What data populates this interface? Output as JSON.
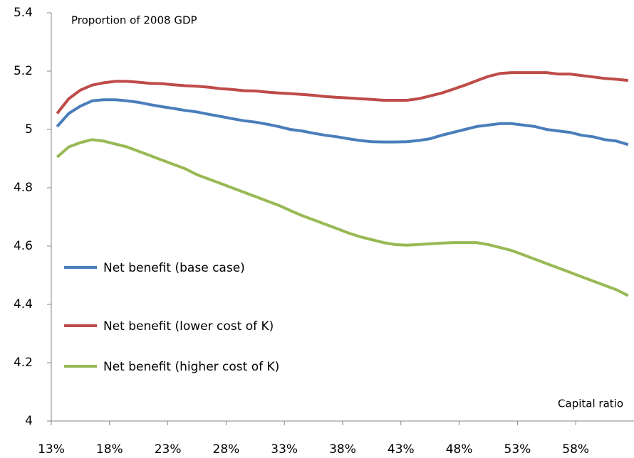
{
  "chart_data": {
    "type": "line",
    "ylabel": "Proportion of 2008 GDP",
    "xlabel": "Capital ratio",
    "x": [
      13.5,
      14.5,
      15.5,
      16.5,
      17.5,
      18.5,
      19.5,
      20.5,
      21.5,
      22.5,
      23.5,
      24.5,
      25.5,
      26.5,
      27.5,
      28.5,
      29.5,
      30.5,
      31.5,
      32.5,
      33.5,
      34.5,
      35.5,
      36.5,
      37.5,
      38.5,
      39.5,
      40.5,
      41.5,
      42.5,
      43.5,
      44.5,
      45.5,
      46.5,
      47.5,
      48.5,
      49.5,
      50.5,
      51.5,
      52.5,
      53.5,
      54.5,
      55.5,
      56.5,
      57.5,
      58.5,
      59.5,
      60.5,
      61.5,
      62.5
    ],
    "series": [
      {
        "name": "Net benefit (base case)",
        "color": "#4a7ebb",
        "values": [
          5.01,
          5.055,
          5.08,
          5.098,
          5.102,
          5.102,
          5.098,
          5.093,
          5.085,
          5.078,
          5.072,
          5.065,
          5.06,
          5.052,
          5.045,
          5.037,
          5.03,
          5.025,
          5.018,
          5.01,
          5.0,
          4.995,
          4.987,
          4.98,
          4.975,
          4.968,
          4.962,
          4.958,
          4.957,
          4.957,
          4.958,
          4.962,
          4.968,
          4.98,
          4.99,
          5.0,
          5.01,
          5.015,
          5.02,
          5.02,
          5.015,
          5.01,
          5.0,
          4.995,
          4.99,
          4.98,
          4.975,
          4.965,
          4.96,
          4.948
        ]
      },
      {
        "name": "Net benefit (lower cost of K)",
        "color": "#be4b48",
        "values": [
          5.055,
          5.105,
          5.135,
          5.152,
          5.16,
          5.165,
          5.165,
          5.162,
          5.158,
          5.157,
          5.153,
          5.15,
          5.148,
          5.145,
          5.14,
          5.137,
          5.133,
          5.132,
          5.128,
          5.125,
          5.123,
          5.12,
          5.117,
          5.113,
          5.11,
          5.108,
          5.105,
          5.103,
          5.1,
          5.1,
          5.1,
          5.105,
          5.115,
          5.125,
          5.138,
          5.152,
          5.167,
          5.182,
          5.192,
          5.195,
          5.195,
          5.195,
          5.195,
          5.19,
          5.19,
          5.185,
          5.18,
          5.175,
          5.172,
          5.168
        ]
      },
      {
        "name": "Net benefit (higher cost of K)",
        "color": "#98b954",
        "values": [
          4.905,
          4.94,
          4.955,
          4.965,
          4.96,
          4.95,
          4.94,
          4.925,
          4.91,
          4.895,
          4.88,
          4.865,
          4.845,
          4.83,
          4.815,
          4.8,
          4.785,
          4.77,
          4.755,
          4.74,
          4.722,
          4.705,
          4.69,
          4.675,
          4.66,
          4.645,
          4.632,
          4.622,
          4.612,
          4.605,
          4.603,
          4.605,
          4.608,
          4.61,
          4.612,
          4.612,
          4.612,
          4.605,
          4.595,
          4.585,
          4.57,
          4.555,
          4.54,
          4.525,
          4.51,
          4.495,
          4.48,
          4.465,
          4.45,
          4.43
        ]
      }
    ],
    "xlim": [
      13,
      63
    ],
    "xticks": [
      {
        "value": 13,
        "label": "13%"
      },
      {
        "value": 18,
        "label": "18%"
      },
      {
        "value": 23,
        "label": "23%"
      },
      {
        "value": 28,
        "label": "28%"
      },
      {
        "value": 33,
        "label": "33%"
      },
      {
        "value": 38,
        "label": "38%"
      },
      {
        "value": 43,
        "label": "43%"
      },
      {
        "value": 48,
        "label": "48%"
      },
      {
        "value": 53,
        "label": "53%"
      },
      {
        "value": 58,
        "label": "58%"
      }
    ],
    "ylim": [
      4,
      5.4
    ],
    "yticks": [
      4,
      4.2,
      4.4,
      4.6,
      4.8,
      5,
      5.2,
      5.4
    ],
    "grid": false,
    "legend": "left"
  }
}
